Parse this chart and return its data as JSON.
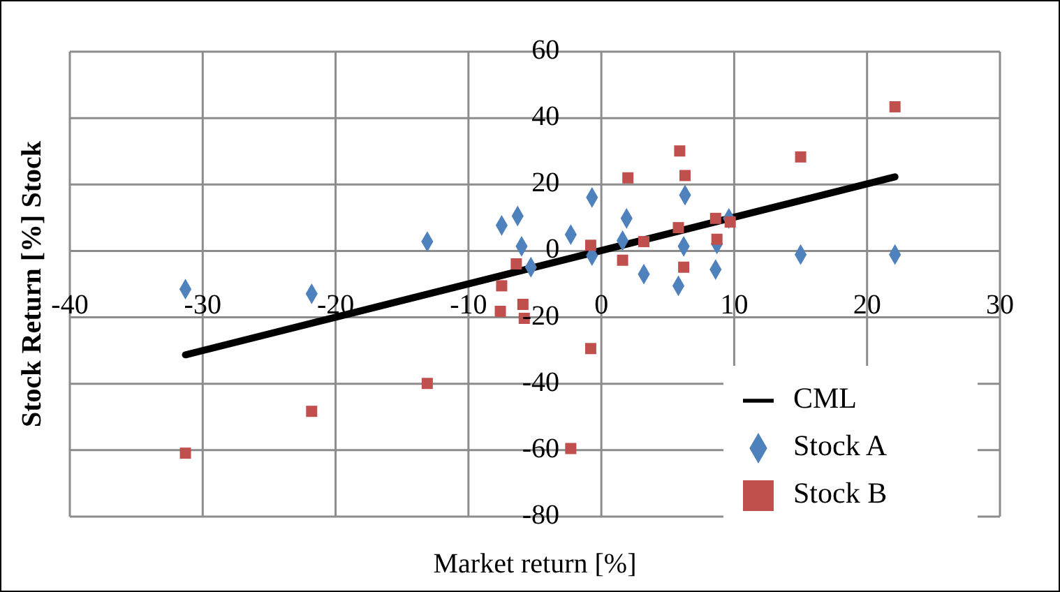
{
  "chart_data": {
    "type": "scatter",
    "xlabel": "Market return [%]",
    "ylabel": "Stock Return [%] Stock",
    "xlim": [
      -40,
      30
    ],
    "xticks": [
      -40,
      -30,
      -20,
      -10,
      0,
      10,
      20,
      30
    ],
    "ylim": [
      -80,
      60
    ],
    "yticks": [
      -80,
      -60,
      -40,
      -20,
      0,
      20,
      40,
      60
    ],
    "grid": true,
    "legend": "bottom right",
    "series": [
      {
        "name": "CML",
        "type": "line",
        "marker": "none",
        "line_style": "solid",
        "color": "#000000",
        "x": [
          -31.3,
          22.1
        ],
        "values": [
          -31.3,
          22.3
        ]
      },
      {
        "name": "Stock A",
        "type": "scatter",
        "marker": "diamond",
        "color": "#4f81bd",
        "x": [
          -31.3,
          -21.8,
          -13.1,
          -7.5,
          -6.3,
          -6.0,
          -5.3,
          -2.3,
          -0.7,
          -0.7,
          1.6,
          1.9,
          3.2,
          5.8,
          6.2,
          6.3,
          8.6,
          8.7,
          9.6,
          15.0,
          22.1
        ],
        "values": [
          -11.5,
          -12.9,
          2.8,
          7.7,
          10.5,
          1.4,
          -4.9,
          4.9,
          16.1,
          -1.4,
          3.1,
          9.8,
          -7.0,
          -10.5,
          1.4,
          16.8,
          -5.6,
          2.1,
          9.8,
          -1.1,
          -1.1
        ]
      },
      {
        "name": "Stock B",
        "type": "scatter",
        "marker": "square",
        "color": "#c0504d",
        "x": [
          -31.3,
          -21.8,
          -13.1,
          -7.5,
          -7.6,
          -6.4,
          -5.9,
          -5.8,
          -2.3,
          -0.8,
          -0.8,
          1.6,
          2.0,
          3.2,
          5.8,
          5.9,
          6.2,
          6.3,
          8.6,
          8.7,
          9.7,
          15.0,
          22.1
        ],
        "values": [
          -60.9,
          -48.3,
          -39.9,
          -10.5,
          -18.2,
          -3.9,
          -16.1,
          -20.3,
          -59.5,
          -29.4,
          1.7,
          -2.8,
          22.0,
          2.8,
          7.0,
          30.1,
          -4.9,
          22.7,
          9.8,
          3.5,
          8.7,
          28.3,
          43.4
        ]
      }
    ]
  }
}
